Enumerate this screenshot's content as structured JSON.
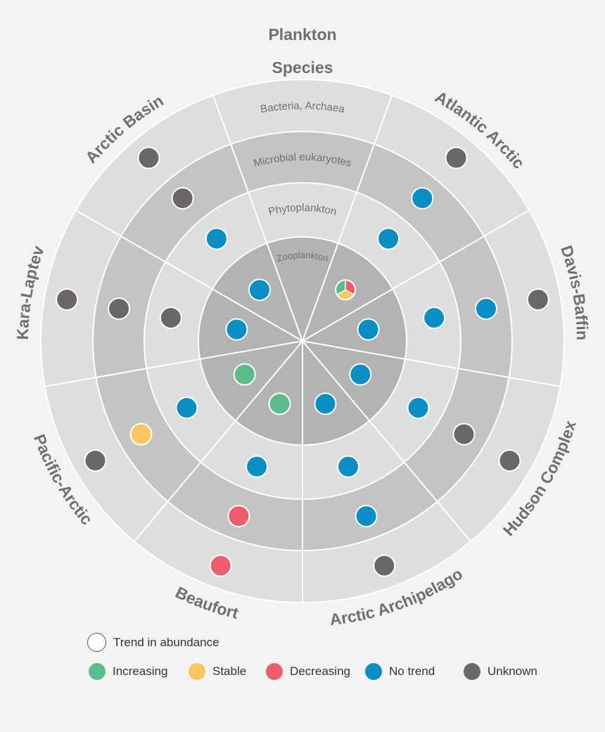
{
  "title": "Plankton",
  "subtitle": "Species",
  "ring_labels": [
    "Zooplankton",
    "Phytoplankton",
    "Microbial eukaryotes",
    "Bacteria, Archaea"
  ],
  "regions": [
    "Atlantic Arctic",
    "Davis-Baffin",
    "Hudson Complex",
    "Arctic Archipelago",
    "Beaufort",
    "Pacific-Arctic",
    "Kara-Laptev",
    "Arctic Basin"
  ],
  "colors": {
    "Increasing": "#5bbd8b",
    "Stable": "#fcc661",
    "Decreasing": "#ee5d6b",
    "No trend": "#0a8fc4",
    "Unknown": "#6b6767"
  },
  "status_grid": [
    [
      "mixed",
      "No trend",
      "No trend",
      "Unknown"
    ],
    [
      "No trend",
      "No trend",
      "No trend",
      "Unknown"
    ],
    [
      "No trend",
      "No trend",
      "Unknown",
      "Unknown"
    ],
    [
      "No trend",
      "No trend",
      "No trend",
      "Unknown"
    ],
    [
      "Increasing",
      "No trend",
      "Decreasing",
      "Decreasing"
    ],
    [
      "Increasing",
      "No trend",
      "Stable",
      "Unknown"
    ],
    [
      "No trend",
      "Unknown",
      "Unknown",
      "Unknown"
    ],
    [
      "No trend",
      "No trend",
      "Unknown",
      "Unknown"
    ]
  ],
  "mixed_marker": [
    "Decreasing",
    "Stable",
    "Increasing"
  ],
  "legend": {
    "header": "Trend in abundance",
    "items": [
      {
        "label": "Increasing",
        "color": "#5bbd8b"
      },
      {
        "label": "Stable",
        "color": "#fcc661"
      },
      {
        "label": "Decreasing",
        "color": "#ee5d6b"
      },
      {
        "label": "No trend",
        "color": "#0a8fc4"
      },
      {
        "label": "Unknown",
        "color": "#6b6767"
      }
    ]
  }
}
